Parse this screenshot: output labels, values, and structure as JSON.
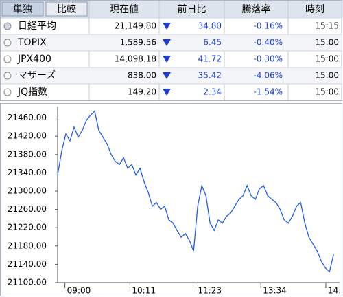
{
  "table": {
    "tabs": [
      "単独",
      "比較"
    ],
    "header": [
      "現在値",
      "前日比",
      "騰落率",
      "時刻"
    ],
    "rows": [
      [
        "日経平均",
        "21,149.80",
        "34.80",
        "-0.16%",
        "15:15"
      ],
      [
        "TOPIX",
        "1,589.56",
        "6.45",
        "-0.40%",
        "15:00"
      ],
      [
        "JPX400",
        "14,098.18",
        "41.72",
        "-0.30%",
        "15:00"
      ],
      [
        "マザーズ",
        "838.00",
        "35.42",
        "-4.06%",
        "15:00"
      ],
      [
        "JQ指数",
        "149.20",
        "2.34",
        "-1.54%",
        "15:00"
      ]
    ]
  },
  "chart_data": {
    "type": "line",
    "color": "#1f5cf0",
    "x": [
      -8,
      -3.5,
      1,
      5.5,
      10,
      14.5,
      19,
      23.5,
      28,
      32.5,
      37,
      41.5,
      46,
      50.5,
      55,
      59.5,
      64,
      68.5,
      73,
      77.5,
      82,
      86.5,
      91,
      95.5,
      100,
      104.5,
      109,
      113.5,
      118,
      122.5,
      127,
      131.5,
      136,
      140.5,
      145,
      149.5,
      154,
      158.5,
      163,
      167.5,
      172,
      176.5,
      181,
      185.5,
      190,
      194.5,
      199,
      203.5,
      208,
      212.5,
      217,
      221.5,
      226,
      230.5,
      235,
      239.5,
      244,
      248.5,
      253,
      257.5,
      262,
      266.5,
      271,
      275.5,
      280,
      284.5,
      289,
      293.5
    ],
    "values": [
      21335,
      21388,
      21425,
      21410,
      21440,
      21418,
      21433,
      21455,
      21466,
      21475,
      21433,
      21418,
      21403,
      21380,
      21365,
      21358,
      21373,
      21350,
      21358,
      21335,
      21350,
      21320,
      21297,
      21267,
      21275,
      21260,
      21267,
      21237,
      21230,
      21214,
      21199,
      21207,
      21192,
      21169,
      21267,
      21312,
      21290,
      21230,
      21214,
      21237,
      21230,
      21245,
      21252,
      21267,
      21282,
      21290,
      21312,
      21290,
      21282,
      21305,
      21312,
      21290,
      21282,
      21275,
      21260,
      21237,
      21230,
      21245,
      21267,
      21275,
      21230,
      21199,
      21184,
      21169,
      21147,
      21132,
      21124,
      21162
    ],
    "xlim": [
      -8,
      300
    ],
    "ylim": [
      21100,
      21485
    ],
    "xticks": [
      {
        "value": 0,
        "label": "09:00"
      },
      {
        "value": 71,
        "label": "10:11"
      },
      {
        "value": 143,
        "label": "11:23"
      },
      {
        "value": 214,
        "label": "13:34"
      },
      {
        "value": 285,
        "label": "14:"
      }
    ],
    "yticks": [
      {
        "value": 21100,
        "label": "21100.00"
      },
      {
        "value": 21140,
        "label": "21140.00"
      },
      {
        "value": 21180,
        "label": "21180.00"
      },
      {
        "value": 21220,
        "label": "21220.00"
      },
      {
        "value": 21260,
        "label": "21260.00"
      },
      {
        "value": 21300,
        "label": "21300.00"
      },
      {
        "value": 21340,
        "label": "21340.00"
      },
      {
        "value": 21380,
        "label": "21380.00"
      },
      {
        "value": 21420,
        "label": "21420.00"
      },
      {
        "value": 21460,
        "label": "21460.00"
      }
    ]
  }
}
